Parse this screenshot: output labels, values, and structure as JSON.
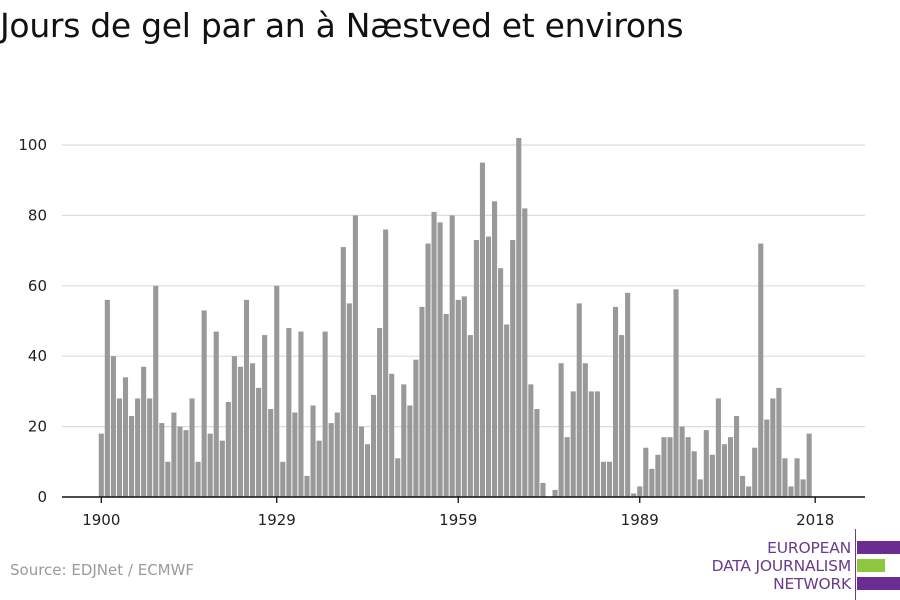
{
  "chart_data": {
    "type": "bar",
    "title": "Jours de gel par an à Næstved et environs",
    "x_start": 1900,
    "x_ticks": [
      1900,
      1929,
      1959,
      1989,
      2018
    ],
    "y_ticks": [
      0,
      20,
      40,
      60,
      80,
      100
    ],
    "ylim": [
      0,
      104
    ],
    "grid": true,
    "bar_color": "#999999",
    "values": [
      18,
      56,
      40,
      28,
      34,
      23,
      28,
      37,
      28,
      60,
      21,
      10,
      24,
      20,
      19,
      28,
      10,
      53,
      18,
      47,
      16,
      27,
      40,
      37,
      56,
      38,
      31,
      46,
      25,
      60,
      10,
      48,
      24,
      47,
      6,
      26,
      16,
      47,
      21,
      24,
      71,
      55,
      80,
      20,
      15,
      29,
      48,
      76,
      35,
      11,
      32,
      26,
      39,
      54,
      72,
      81,
      78,
      52,
      80,
      56,
      57,
      46,
      73,
      95,
      74,
      84,
      65,
      49,
      73,
      102,
      82,
      32,
      25,
      4,
      0,
      2,
      38,
      17,
      30,
      55,
      38,
      30,
      30,
      10,
      10,
      54,
      46,
      58,
      1,
      3,
      14,
      8,
      12,
      17,
      17,
      59,
      20,
      17,
      13,
      5,
      19,
      12,
      28,
      15,
      17,
      23,
      6,
      3,
      14,
      72,
      22,
      28,
      31,
      11,
      3,
      11,
      5,
      18
    ]
  },
  "footer": {
    "source": "Source: EDJNet / ECMWF",
    "logo_lines": [
      "EUROPEAN",
      "DATA JOURNALISM",
      "NETWORK"
    ],
    "logo_colors": {
      "text": "#6b3a8c",
      "purple": "#6b2d91",
      "green": "#8dc63f"
    }
  }
}
